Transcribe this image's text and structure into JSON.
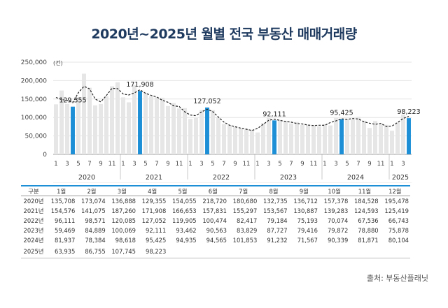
{
  "title": "2020년~2025년 월별 전국 부동산 매매거래량",
  "source": "출처: 부동산플래닛",
  "table": {
    "header": [
      "구분",
      "1월",
      "2월",
      "3월",
      "4월",
      "5월",
      "6월",
      "7월",
      "8월",
      "9월",
      "10월",
      "11월",
      "12월"
    ],
    "rows": [
      {
        "year": "2020년",
        "values": [
          "135,708",
          "173,074",
          "136,888",
          "129,355",
          "154,055",
          "218,720",
          "180,680",
          "132,735",
          "136,712",
          "157,378",
          "184,528",
          "195,478"
        ]
      },
      {
        "year": "2021년",
        "values": [
          "154,576",
          "141,075",
          "187,260",
          "171,908",
          "166,653",
          "157,831",
          "155,297",
          "153,567",
          "130,887",
          "139,283",
          "124,593",
          "125,419"
        ]
      },
      {
        "year": "2022년",
        "values": [
          "96,111",
          "98,571",
          "120,085",
          "127,052",
          "119,905",
          "100,474",
          "82,417",
          "79,184",
          "75,193",
          "70,074",
          "67,536",
          "66,743"
        ]
      },
      {
        "year": "2023년",
        "values": [
          "59,469",
          "84,889",
          "100,069",
          "92,111",
          "93,462",
          "90,563",
          "83,829",
          "87,727",
          "79,416",
          "79,872",
          "78,880",
          "75,878"
        ]
      },
      {
        "year": "2024년",
        "values": [
          "81,937",
          "78,384",
          "98,618",
          "95,425",
          "94,935",
          "94,565",
          "101,853",
          "91,232",
          "71,567",
          "90,339",
          "81,871",
          "80,104"
        ]
      },
      {
        "year": "2025년",
        "values": [
          "63,935",
          "86,755",
          "107,745",
          "98,223",
          "",
          "",
          "",
          "",
          "",
          "",
          "",
          ""
        ]
      }
    ]
  },
  "chart_data": {
    "type": "bar",
    "title": "2020년~2025년 월별 전국 부동산 매매거래량",
    "ylabel": "(건)",
    "ylim": [
      0,
      250000
    ],
    "yticks": [
      0,
      50000,
      100000,
      150000,
      200000,
      250000
    ],
    "ytick_labels": [
      "0",
      "50,000",
      "100,000",
      "150,000",
      "200,000",
      "250,000"
    ],
    "month_ticks": [
      "1",
      "3",
      "5",
      "7",
      "9",
      "11"
    ],
    "month_ticks_2025": [
      "1",
      "3"
    ],
    "years": [
      "2020",
      "2021",
      "2022",
      "2023",
      "2024",
      "2025"
    ],
    "values": [
      135708,
      173074,
      136888,
      129355,
      154055,
      218720,
      180680,
      132735,
      136712,
      157378,
      184528,
      195478,
      154576,
      141075,
      187260,
      171908,
      166653,
      157831,
      155297,
      153567,
      130887,
      139283,
      124593,
      125419,
      96111,
      98571,
      120085,
      127052,
      119905,
      100474,
      82417,
      79184,
      75193,
      70074,
      67536,
      66743,
      59469,
      84889,
      100069,
      92111,
      93462,
      90563,
      83829,
      87727,
      79416,
      79872,
      78880,
      75878,
      81937,
      78384,
      98618,
      95425,
      94935,
      94565,
      101853,
      91232,
      71567,
      90339,
      81871,
      80104,
      63935,
      86755,
      107745,
      98223
    ],
    "highlight_indices": [
      3,
      15,
      27,
      39,
      51,
      63
    ],
    "highlight_labels": [
      "129,355",
      "171,908",
      "127,052",
      "92,111",
      "95,425",
      "98,223"
    ],
    "bar_color": "#e6e6e6",
    "highlight_color": "#1d8fd6",
    "trend_line": "dashed moving average",
    "grid": true
  }
}
